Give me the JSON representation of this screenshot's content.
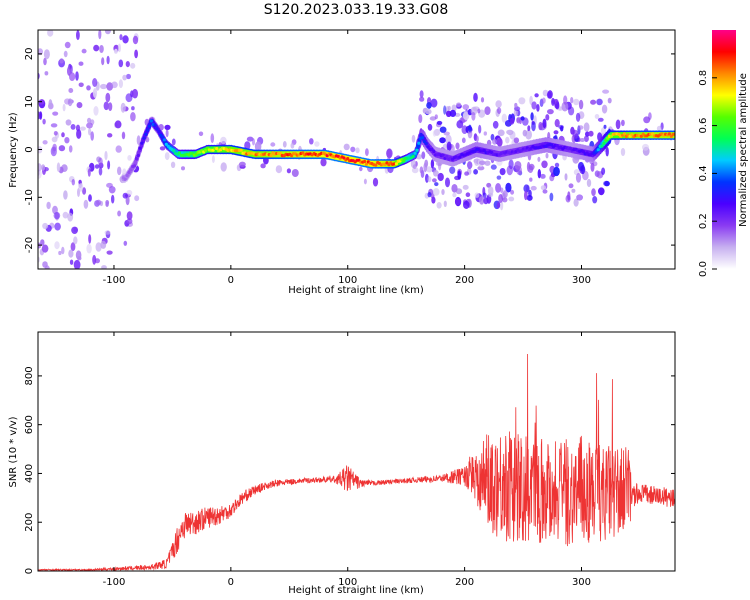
{
  "title": "S120.2023.033.19.33.G08",
  "chart_data": [
    {
      "type": "heatmap",
      "xlabel": "Height of straight line (km)",
      "ylabel": "Frequency (Hz)",
      "xlim": [
        -165,
        380
      ],
      "ylim": [
        -25,
        25
      ],
      "xticks": [
        -100,
        0,
        100,
        200,
        300
      ],
      "yticks": [
        -20,
        -10,
        0,
        10,
        20
      ],
      "grid": false,
      "colorbar": {
        "label": "Normalized spectral amplitude",
        "range": [
          0,
          1
        ],
        "ticks": [
          "0.0",
          "0.2",
          "0.4",
          "0.6",
          "0.8"
        ],
        "colormap": [
          "#ffffff",
          "#c7b0f0",
          "#8a3bf2",
          "#4a00ff",
          "#0033ff",
          "#00ccff",
          "#00ff55",
          "#55ff00",
          "#ffff00",
          "#ff8800",
          "#ff0000",
          "#ff0088"
        ]
      },
      "ridge": {
        "x": [
          -90,
          -82,
          -75,
          -68,
          -62,
          -55,
          -50,
          -45,
          -40,
          -30,
          -20,
          -10,
          0,
          20,
          40,
          60,
          80,
          100,
          120,
          140,
          150,
          158,
          163,
          168,
          175,
          190,
          210,
          230,
          250,
          270,
          290,
          310,
          325,
          340,
          360,
          380
        ],
        "y": [
          -6,
          -3,
          2,
          6,
          4,
          1,
          0,
          -1,
          -1,
          -1,
          0,
          0,
          0,
          -1,
          -1,
          -1,
          -1,
          -2,
          -3,
          -3,
          -2,
          -1,
          3,
          1,
          -1,
          -2,
          0,
          -1,
          0,
          1,
          0,
          -1,
          3,
          3,
          3,
          3
        ],
        "amplitude": [
          0.15,
          0.2,
          0.3,
          0.4,
          0.3,
          0.45,
          0.5,
          0.55,
          0.6,
          0.65,
          0.7,
          0.75,
          0.8,
          0.82,
          0.85,
          0.88,
          0.9,
          0.9,
          0.9,
          0.85,
          0.6,
          0.5,
          0.4,
          0.3,
          0.25,
          0.25,
          0.3,
          0.25,
          0.25,
          0.3,
          0.25,
          0.3,
          0.75,
          0.82,
          0.85,
          0.85
        ]
      }
    },
    {
      "type": "line",
      "xlabel": "Height of straight line (km)",
      "ylabel": "SNR (10 * v/v)",
      "xlim": [
        -165,
        380
      ],
      "ylim": [
        0,
        980
      ],
      "xticks": [
        -100,
        0,
        100,
        200,
        300
      ],
      "yticks": [
        0,
        200,
        400,
        600,
        800
      ],
      "grid": false,
      "series": [
        {
          "color": "#ee3333",
          "x": [
            -165,
            -120,
            -70,
            -55,
            -50,
            -45,
            -40,
            -30,
            -20,
            -10,
            0,
            10,
            20,
            30,
            40,
            60,
            80,
            90,
            100,
            110,
            120,
            150,
            180,
            200,
            210,
            220,
            230,
            250,
            270,
            290,
            300,
            320,
            340,
            343,
            350,
            360,
            380
          ],
          "y": [
            5,
            5,
            15,
            30,
            80,
            140,
            190,
            200,
            220,
            230,
            250,
            300,
            330,
            350,
            360,
            370,
            375,
            375,
            380,
            360,
            360,
            370,
            380,
            390,
            400,
            370,
            360,
            330,
            340,
            320,
            330,
            320,
            330,
            300,
            320,
            310,
            300
          ],
          "spread": [
            3,
            3,
            10,
            20,
            40,
            60,
            60,
            50,
            45,
            40,
            30,
            25,
            20,
            15,
            15,
            10,
            12,
            15,
            60,
            20,
            10,
            10,
            15,
            40,
            120,
            200,
            230,
            230,
            220,
            220,
            230,
            200,
            180,
            60,
            40,
            40,
            40
          ]
        }
      ]
    }
  ]
}
